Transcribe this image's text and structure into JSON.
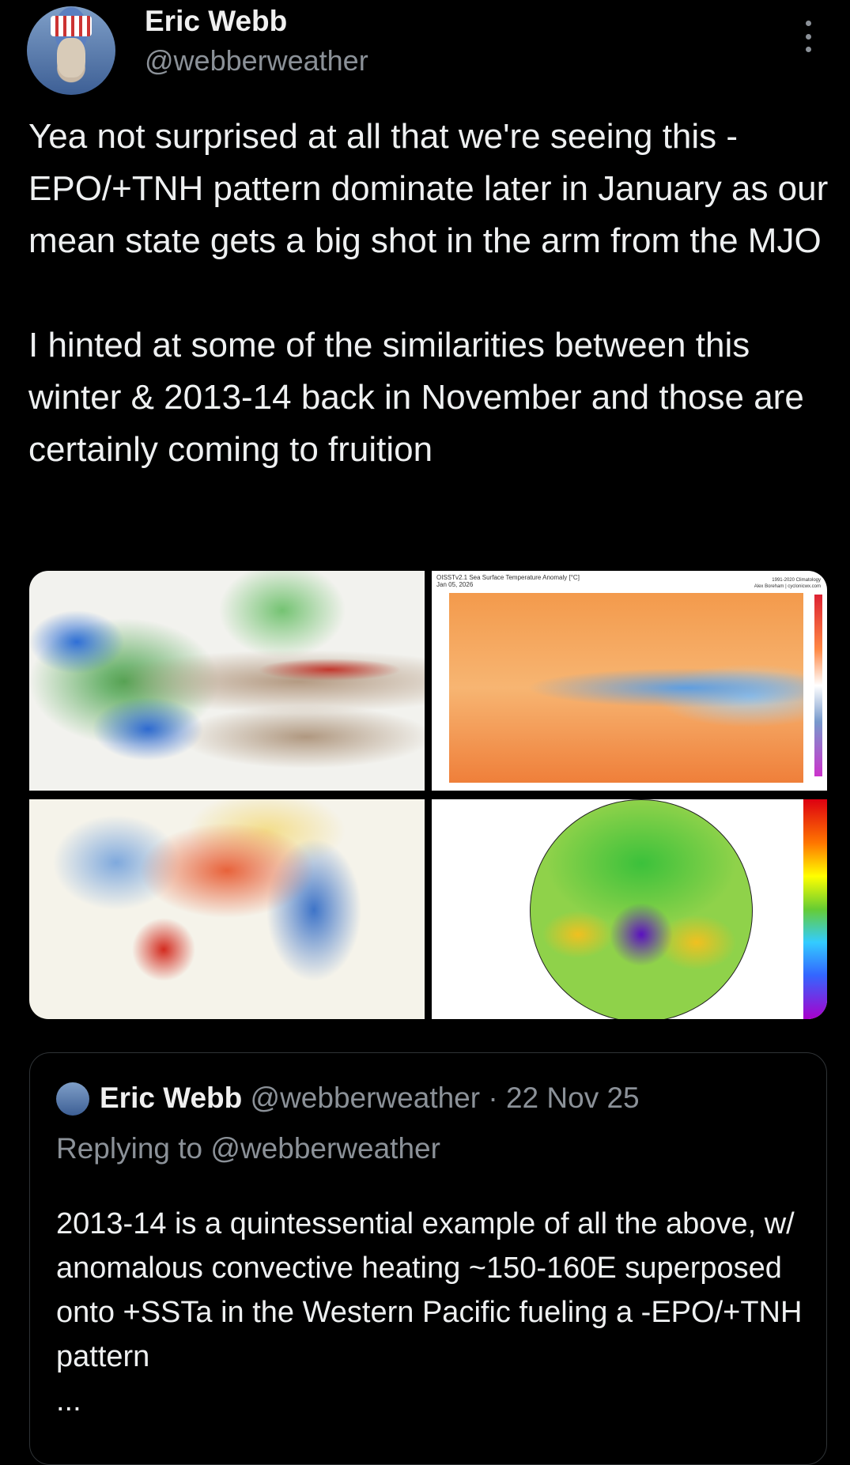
{
  "tweet": {
    "author_name": "Eric Webb",
    "author_handle": "@webberweather",
    "paragraphs": [
      "Yea not surprised at all that we're seeing this -EPO/+TNH pattern dominate later in January as our mean state gets a big shot in the arm from the MJO",
      "I hinted at some of the similarities between this winter & 2013-14 back in November and those are certainly coming to fruition"
    ],
    "images": {
      "sst_title": "OISSTv2.1 Sea Surface Temperature Anomaly [°C]",
      "sst_date": "Jan 05, 2026",
      "sst_climatology": "1991-2020 Climatology",
      "sst_credit": "Alex Boreham | cyclonicwx.com"
    }
  },
  "quoted_tweet": {
    "author_name": "Eric Webb",
    "author_handle": "@webberweather",
    "separator": "·",
    "date": "22 Nov 25",
    "replying_to": "Replying to @webberweather",
    "text": "2013-14 is a quintessential example of all the above, w/ anomalous convective heating ~150-160E superposed onto +SSTa in the Western Pacific fueling a -EPO/+TNH pattern",
    "ellipsis": "..."
  }
}
